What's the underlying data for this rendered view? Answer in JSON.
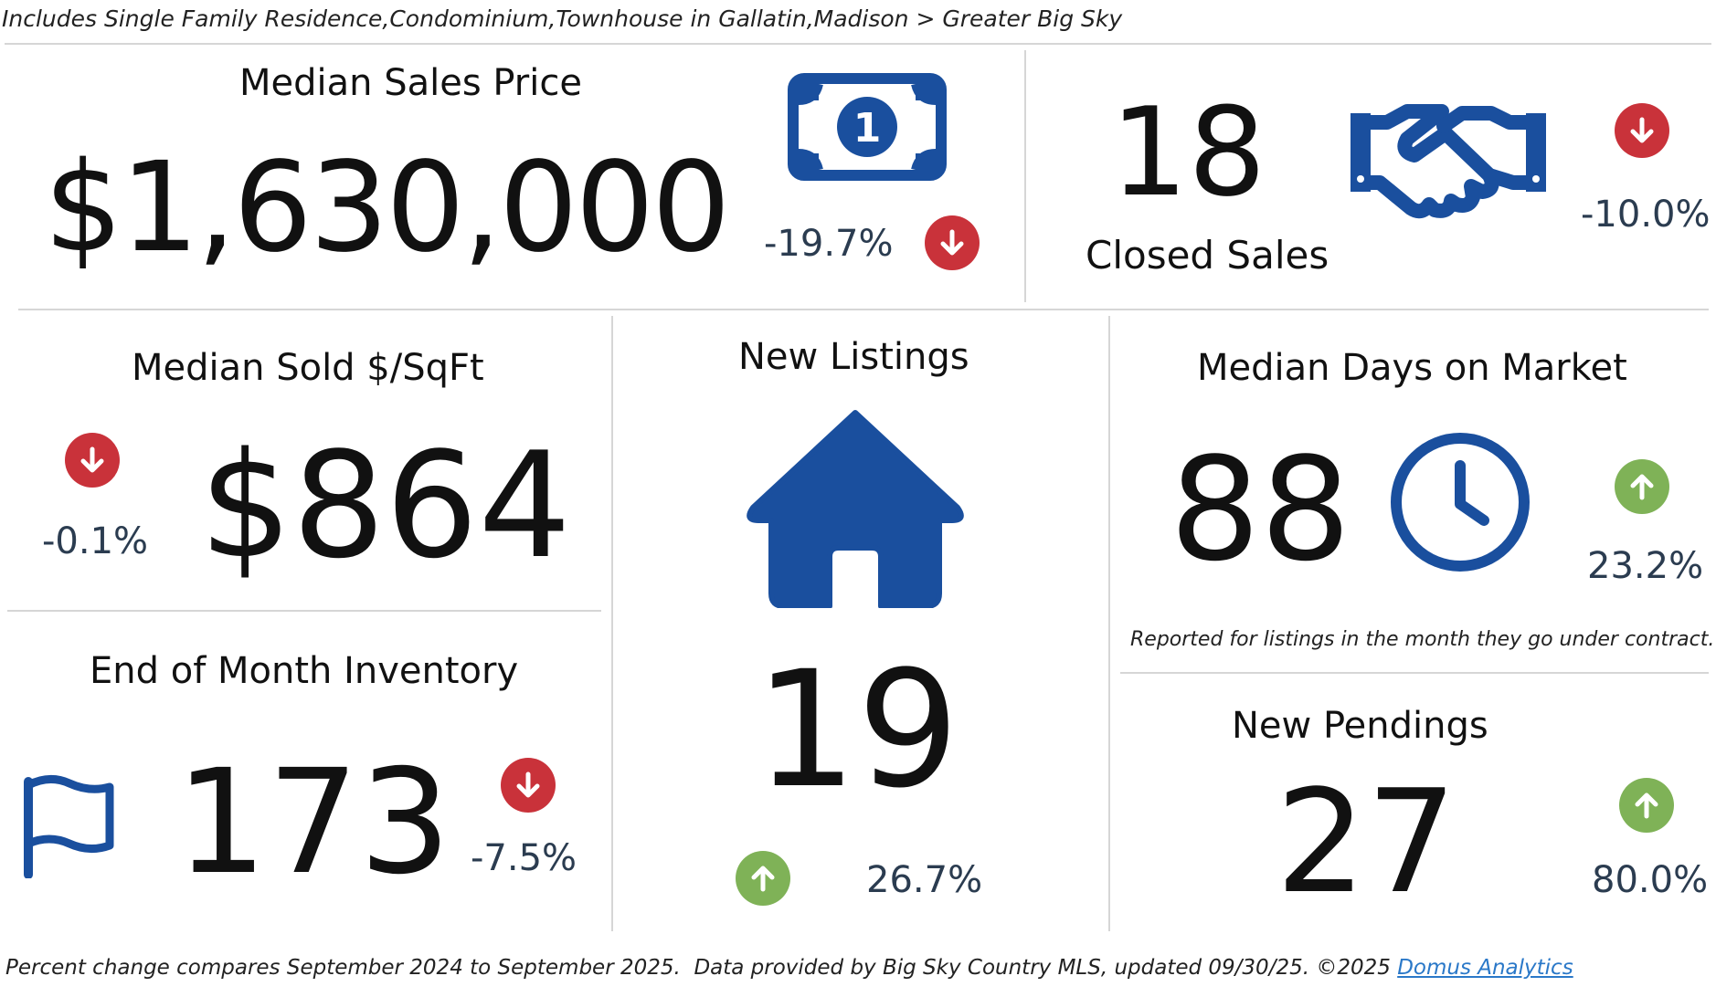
{
  "header": {
    "subtitle": "Includes Single Family Residence,Condominium,Townhouse in Gallatin,Madison > Greater Big Sky"
  },
  "colors": {
    "down": "#c9323a",
    "up": "#7fb257",
    "icon_blue": "#1a4f9e",
    "pct_text": "#2b3c50",
    "divider": "#d6d6d6",
    "link": "#2a78c8"
  },
  "metrics": {
    "median_sales_price": {
      "title": "Median Sales Price",
      "value": "$1,630,000",
      "change": "-19.7%",
      "direction": "down",
      "icon": "dollar-bill-icon"
    },
    "closed_sales": {
      "title": "Closed Sales",
      "value": "18",
      "change": "-10.0%",
      "direction": "down",
      "icon": "handshake-icon"
    },
    "median_sold_sqft": {
      "title": "Median Sold $/SqFt",
      "value": "$864",
      "change": "-0.1%",
      "direction": "down"
    },
    "new_listings": {
      "title": "New Listings",
      "value": "19",
      "change": "26.7%",
      "direction": "up",
      "icon": "house-icon"
    },
    "median_days_on_market": {
      "title": "Median Days on Market",
      "value": "88",
      "change": "23.2%",
      "direction": "up",
      "icon": "clock-icon",
      "note": "Reported for listings in the month they go under contract."
    },
    "end_of_month_inventory": {
      "title": "End of Month Inventory",
      "value": "173",
      "change": "-7.5%",
      "direction": "down",
      "icon": "flag-icon"
    },
    "new_pendings": {
      "title": "New Pendings",
      "value": "27",
      "change": "80.0%",
      "direction": "up"
    }
  },
  "footer": {
    "text": "Percent change compares September 2024 to September 2025.  Data provided by Big Sky Country MLS, updated 09/30/25. ©2025 ",
    "link_label": "Domus Analytics"
  }
}
